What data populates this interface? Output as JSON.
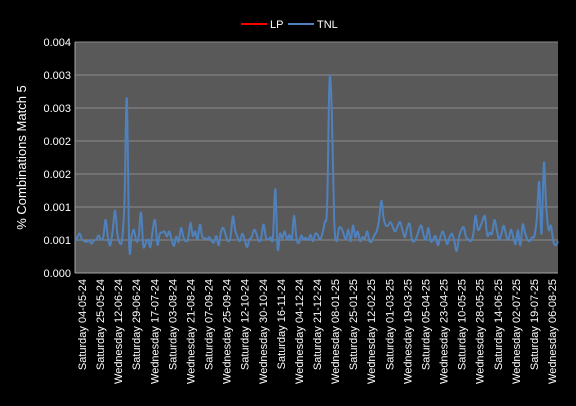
{
  "chart_data": {
    "type": "line",
    "ylabel": "% Combinations Match 5",
    "xlabel": "",
    "ylim": [
      0,
      0.004
    ],
    "yticks": [
      "0.000",
      "0.001",
      "0.001",
      "0.002",
      "0.002",
      "0.003",
      "0.003",
      "0.004"
    ],
    "grid": true,
    "legend_position": "top",
    "background": "#000000",
    "plot_background": "#595959",
    "gridline_color": "#8c8c8c",
    "x_tick_labels": [
      "Saturday 04-05-24",
      "Saturday 25-05-24",
      "Wednesday 12-06-24",
      "Saturday 29-06-24",
      "Wednesday 17-07-24",
      "Saturday 03-08-24",
      "Wednesday 21-08-24",
      "Saturday 07-09-24",
      "Wednesday 25-09-24",
      "Saturday 12-10-24",
      "Wednesday 30-10-24",
      "Saturday 16-11-24",
      "Wednesday 04-12-24",
      "Saturday 21-12-24",
      "Wednesday 08-01-25",
      "Saturday 25-01-25",
      "Wednesday 12-02-25",
      "Saturday 01-03-25",
      "Wednesday 19-03-25",
      "Saturday 05-04-25",
      "Wednesday 23-04-25",
      "Saturday 10-05-25",
      "Wednesday 28-05-25",
      "Saturday 14-06-25",
      "Wednesday 02-07-25",
      "Saturday 19-07-25",
      "Wednesday 06-08-25"
    ],
    "series": [
      {
        "name": "LP",
        "color": "#ff0000",
        "values": []
      },
      {
        "name": "TNL",
        "color": "#4f81bd",
        "values": [
          0.00055,
          0.00062,
          0.00068,
          0.00058,
          0.00055,
          0.00054,
          0.00056,
          0.00051,
          0.00056,
          0.00058,
          0.00065,
          0.00058,
          0.00062,
          0.00092,
          0.0006,
          0.00048,
          0.00074,
          0.00108,
          0.00068,
          0.00052,
          0.00058,
          0.00125,
          0.00302,
          0.00048,
          0.00063,
          0.00075,
          0.00055,
          0.00062,
          0.00105,
          0.00047,
          0.00052,
          0.00058,
          0.00045,
          0.00075,
          0.00091,
          0.00049,
          0.00068,
          0.0007,
          0.00072,
          0.00063,
          0.00072,
          0.00058,
          0.00047,
          0.00063,
          0.00054,
          0.00078,
          0.00062,
          0.00055,
          0.00059,
          0.00087,
          0.00064,
          0.00072,
          0.00058,
          0.00084,
          0.00063,
          0.00061,
          0.00058,
          0.00062,
          0.00055,
          0.00053,
          0.00064,
          0.00048,
          0.00072,
          0.00078,
          0.00065,
          0.00055,
          0.00062,
          0.00098,
          0.00074,
          0.00062,
          0.00055,
          0.00068,
          0.00058,
          0.00045,
          0.00058,
          0.00062,
          0.00075,
          0.00068,
          0.00055,
          0.0006,
          0.00084,
          0.00062,
          0.00058,
          0.00062,
          0.0006,
          0.00145,
          0.00042,
          0.00068,
          0.0006,
          0.00072,
          0.00058,
          0.00066,
          0.00058,
          0.00099,
          0.0006,
          0.00052,
          0.00065,
          0.00058,
          0.00061,
          0.00057,
          0.00066,
          0.00055,
          0.00068,
          0.00066,
          0.00058,
          0.00068,
          0.00088,
          0.00115,
          0.00333,
          0.0028,
          0.00091,
          0.00055,
          0.00077,
          0.00078,
          0.00068,
          0.00058,
          0.00075,
          0.00055,
          0.00082,
          0.00062,
          0.00072,
          0.00055,
          0.00062,
          0.0006,
          0.00072,
          0.00055,
          0.00055,
          0.00065,
          0.00072,
          0.0009,
          0.00125,
          0.00095,
          0.00082,
          0.00083,
          0.00088,
          0.00078,
          0.00072,
          0.00082,
          0.00088,
          0.00074,
          0.00062,
          0.00078,
          0.00085,
          0.00058,
          0.00055,
          0.00062,
          0.00075,
          0.00082,
          0.00065,
          0.00058,
          0.00078,
          0.00055,
          0.00058,
          0.00064,
          0.00048,
          0.00061,
          0.00072,
          0.00062,
          0.0005,
          0.00062,
          0.00068,
          0.00055,
          0.00038,
          0.00062,
          0.00075,
          0.00079,
          0.00062,
          0.00058,
          0.00055,
          0.00066,
          0.00099,
          0.00075,
          0.0008,
          0.00091,
          0.00098,
          0.00065,
          0.0007,
          0.00068,
          0.00092,
          0.00075,
          0.00058,
          0.00068,
          0.00082,
          0.00065,
          0.00058,
          0.00075,
          0.00062,
          0.0005,
          0.00074,
          0.00048,
          0.00084,
          0.0007,
          0.00058,
          0.00055,
          0.00062,
          0.00064,
          0.00095,
          0.00158,
          0.00068,
          0.00191,
          0.00115,
          0.00075,
          0.00082,
          0.00055,
          0.00048,
          0.00055
        ]
      }
    ]
  }
}
